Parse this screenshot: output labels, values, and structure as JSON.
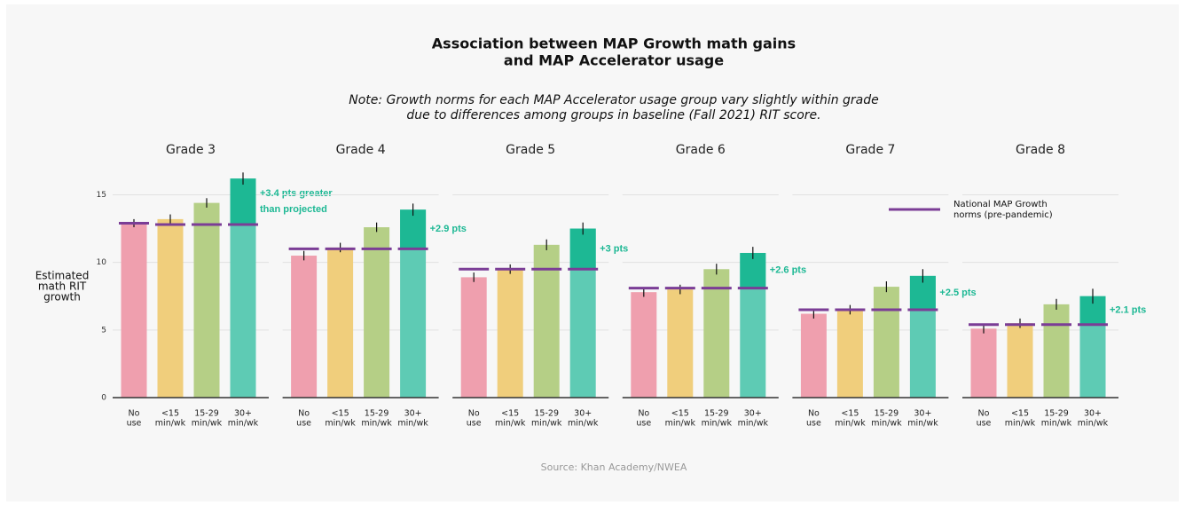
{
  "page": {
    "title": [
      "Association between MAP Growth math gains",
      "and MAP Accelerator usage"
    ],
    "note": [
      "Note: Growth norms for each MAP Accelerator usage group vary slightly within grade",
      "due to differences among groups in baseline (Fall 2021) RIT score."
    ],
    "ylabel": [
      "Estimated",
      "math RIT",
      "growth"
    ],
    "legend": [
      "National MAP Growth",
      "norms (pre-pandemic)"
    ],
    "source": "Source: Khan Academy/NWEA"
  },
  "chart_data": [
    {
      "type": "bar",
      "title": "Grade 3",
      "categories": [
        [
          "No",
          "use"
        ],
        [
          "<15",
          "min/wk"
        ],
        [
          "15-29",
          "min/wk"
        ],
        [
          "30+",
          "min/wk"
        ]
      ],
      "values": [
        12.9,
        13.2,
        14.4,
        16.2
      ],
      "errors": [
        0.3,
        0.35,
        0.35,
        0.45
      ],
      "norms": [
        12.9,
        12.8,
        12.8,
        12.8
      ],
      "annotation": [
        "+3.4 pts greater",
        "than projected"
      ],
      "colors": [
        "#ef9fae",
        "#f0ce7c",
        "#b5cf86",
        "#5ecbb4"
      ],
      "highlight_color": "#1db894",
      "norm_color": "#7b3d96",
      "ylim": [
        0,
        17
      ],
      "yticks": [
        0,
        5,
        10,
        15
      ],
      "grid": true
    },
    {
      "type": "bar",
      "title": "Grade 4",
      "categories": [
        [
          "No",
          "use"
        ],
        [
          "<15",
          "min/wk"
        ],
        [
          "15-29",
          "min/wk"
        ],
        [
          "30+",
          "min/wk"
        ]
      ],
      "values": [
        10.5,
        11.1,
        12.6,
        13.9
      ],
      "errors": [
        0.35,
        0.35,
        0.35,
        0.45
      ],
      "norms": [
        11.0,
        11.0,
        11.0,
        11.0
      ],
      "annotation": [
        "+2.9 pts"
      ],
      "colors": [
        "#ef9fae",
        "#f0ce7c",
        "#b5cf86",
        "#5ecbb4"
      ],
      "highlight_color": "#1db894",
      "norm_color": "#7b3d96",
      "ylim": [
        0,
        17
      ],
      "yticks": [
        0,
        5,
        10,
        15
      ],
      "grid": true
    },
    {
      "type": "bar",
      "title": "Grade 5",
      "categories": [
        [
          "No",
          "use"
        ],
        [
          "<15",
          "min/wk"
        ],
        [
          "15-29",
          "min/wk"
        ],
        [
          "30+",
          "min/wk"
        ]
      ],
      "values": [
        8.9,
        9.5,
        11.3,
        12.5
      ],
      "errors": [
        0.35,
        0.35,
        0.4,
        0.45
      ],
      "norms": [
        9.5,
        9.5,
        9.5,
        9.5
      ],
      "annotation": [
        "+3 pts"
      ],
      "colors": [
        "#ef9fae",
        "#f0ce7c",
        "#b5cf86",
        "#5ecbb4"
      ],
      "highlight_color": "#1db894",
      "norm_color": "#7b3d96",
      "ylim": [
        0,
        17
      ],
      "yticks": [
        0,
        5,
        10,
        15
      ],
      "grid": true
    },
    {
      "type": "bar",
      "title": "Grade 6",
      "categories": [
        [
          "No",
          "use"
        ],
        [
          "<15",
          "min/wk"
        ],
        [
          "15-29",
          "min/wk"
        ],
        [
          "30+",
          "min/wk"
        ]
      ],
      "values": [
        7.8,
        8.0,
        9.5,
        10.7
      ],
      "errors": [
        0.35,
        0.35,
        0.4,
        0.45
      ],
      "norms": [
        8.1,
        8.1,
        8.1,
        8.1
      ],
      "annotation": [
        "+2.6 pts"
      ],
      "colors": [
        "#ef9fae",
        "#f0ce7c",
        "#b5cf86",
        "#5ecbb4"
      ],
      "highlight_color": "#1db894",
      "norm_color": "#7b3d96",
      "ylim": [
        0,
        17
      ],
      "yticks": [
        0,
        5,
        10,
        15
      ],
      "grid": true
    },
    {
      "type": "bar",
      "title": "Grade 7",
      "categories": [
        [
          "No",
          "use"
        ],
        [
          "<15",
          "min/wk"
        ],
        [
          "15-29",
          "min/wk"
        ],
        [
          "30+",
          "min/wk"
        ]
      ],
      "values": [
        6.2,
        6.5,
        8.2,
        9.0
      ],
      "errors": [
        0.35,
        0.35,
        0.4,
        0.5
      ],
      "norms": [
        6.5,
        6.5,
        6.5,
        6.5
      ],
      "annotation": [
        "+2.5 pts"
      ],
      "colors": [
        "#ef9fae",
        "#f0ce7c",
        "#b5cf86",
        "#5ecbb4"
      ],
      "highlight_color": "#1db894",
      "norm_color": "#7b3d96",
      "ylim": [
        0,
        17
      ],
      "yticks": [
        0,
        5,
        10,
        15
      ],
      "grid": true
    },
    {
      "type": "bar",
      "title": "Grade 8",
      "categories": [
        [
          "No",
          "use"
        ],
        [
          "<15",
          "min/wk"
        ],
        [
          "15-29",
          "min/wk"
        ],
        [
          "30+",
          "min/wk"
        ]
      ],
      "values": [
        5.1,
        5.5,
        6.9,
        7.5
      ],
      "errors": [
        0.35,
        0.35,
        0.4,
        0.55
      ],
      "norms": [
        5.4,
        5.4,
        5.4,
        5.4
      ],
      "annotation": [
        "+2.1 pts"
      ],
      "colors": [
        "#ef9fae",
        "#f0ce7c",
        "#b5cf86",
        "#5ecbb4"
      ],
      "highlight_color": "#1db894",
      "norm_color": "#7b3d96",
      "ylim": [
        0,
        17
      ],
      "yticks": [
        0,
        5,
        10,
        15
      ],
      "grid": true
    }
  ]
}
